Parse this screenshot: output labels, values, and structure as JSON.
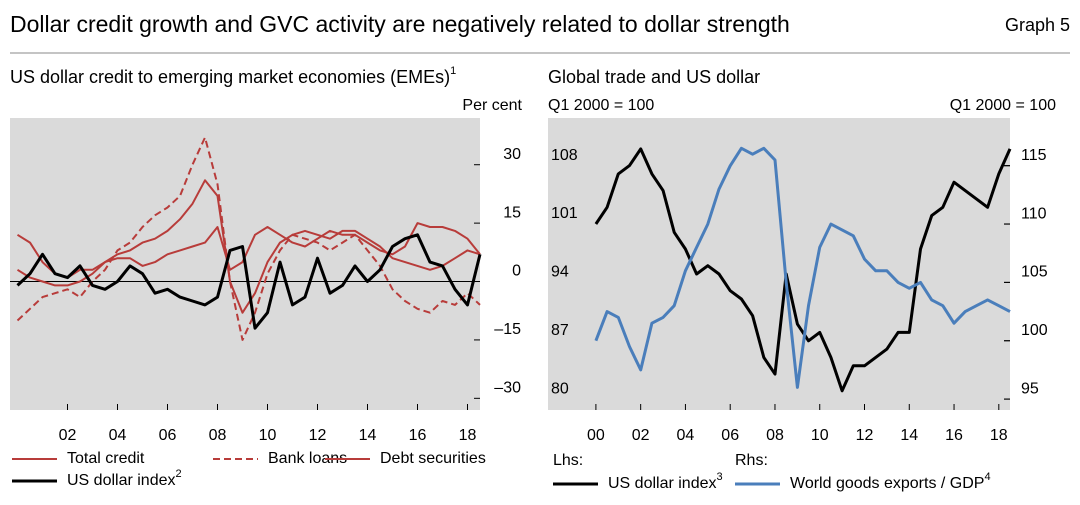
{
  "title": "Dollar credit growth and GVC activity are negatively related to dollar strength",
  "graph_label": "Graph 5",
  "chart_data": [
    {
      "type": "line",
      "title": "US dollar credit to emerging market economies (EMEs)",
      "title_note": "1",
      "y_unit": "Per cent",
      "x": [
        2000,
        2000.5,
        2001,
        2001.5,
        2002,
        2002.5,
        2003,
        2003.5,
        2004,
        2004.5,
        2005,
        2005.5,
        2006,
        2006.5,
        2007,
        2007.5,
        2008,
        2008.5,
        2009,
        2009.5,
        2010,
        2010.5,
        2011,
        2011.5,
        2012,
        2012.5,
        2013,
        2013.5,
        2014,
        2014.5,
        2015,
        2015.5,
        2016,
        2016.5,
        2017,
        2017.5,
        2018,
        2018.5
      ],
      "xlim": [
        1999.7,
        2018.5
      ],
      "xticks": [
        {
          "value": 2002,
          "label": "02"
        },
        {
          "value": 2004,
          "label": "04"
        },
        {
          "value": 2006,
          "label": "06"
        },
        {
          "value": 2008,
          "label": "08"
        },
        {
          "value": 2010,
          "label": "10"
        },
        {
          "value": 2012,
          "label": "12"
        },
        {
          "value": 2014,
          "label": "14"
        },
        {
          "value": 2016,
          "label": "16"
        },
        {
          "value": 2018,
          "label": "18"
        }
      ],
      "ylim": [
        -33,
        42
      ],
      "yticks": [
        30,
        15,
        0,
        {
          "value": -15,
          "label": "–15"
        },
        {
          "value": -30,
          "label": "–30"
        }
      ],
      "zero_line": true,
      "grid": false,
      "series": [
        {
          "name": "Total credit",
          "color": "#b83c3a",
          "dash": false,
          "width": 2,
          "values": [
            3,
            1,
            0,
            -1,
            -1,
            0,
            2,
            5,
            7,
            8,
            10,
            11,
            13,
            16,
            20,
            26,
            22,
            0,
            -8,
            -3,
            5,
            10,
            12,
            13,
            12,
            11,
            13,
            13,
            11,
            9,
            6,
            5,
            4,
            3,
            4,
            6,
            8,
            7
          ]
        },
        {
          "name": "Bank loans",
          "color": "#b83c3a",
          "dash": true,
          "width": 2,
          "values": [
            -10,
            -7,
            -4,
            -3,
            -2,
            -4,
            0,
            3,
            8,
            10,
            14,
            17,
            19,
            22,
            30,
            37,
            25,
            0,
            -15,
            -8,
            2,
            8,
            12,
            11,
            10,
            8,
            10,
            12,
            8,
            4,
            -2,
            -5,
            -7,
            -8,
            -5,
            -6,
            -3,
            -6
          ]
        },
        {
          "name": "Debt securities",
          "color": "#b83c3a",
          "dash": false,
          "width": 2,
          "values": [
            12,
            10,
            5,
            2,
            1,
            3,
            3,
            5,
            6,
            6,
            4,
            5,
            7,
            8,
            9,
            10,
            14,
            3,
            5,
            12,
            14,
            12,
            10,
            9,
            11,
            13,
            12,
            12,
            10,
            8,
            7,
            9,
            15,
            14,
            14,
            13,
            11,
            7
          ]
        },
        {
          "name": "US dollar index",
          "note": "2",
          "color": "#000000",
          "dash": false,
          "width": 3,
          "values": [
            -1,
            2,
            7,
            2,
            1,
            4,
            -1,
            -2,
            0,
            4,
            2,
            -3,
            -2,
            -4,
            -5,
            -6,
            -4,
            8,
            9,
            -12,
            -8,
            5,
            -6,
            -4,
            6,
            -3,
            -1,
            4,
            0,
            3,
            9,
            11,
            12,
            5,
            4,
            -2,
            -6,
            7
          ]
        }
      ]
    },
    {
      "type": "line",
      "title": "Global trade and US dollar",
      "y_unit": "Q1 2000 = 100",
      "y2_unit": "Q1 2000 = 100",
      "x": [
        2000,
        2000.5,
        2001,
        2001.5,
        2002,
        2002.5,
        2003,
        2003.5,
        2004,
        2004.5,
        2005,
        2005.5,
        2006,
        2006.5,
        2007,
        2007.5,
        2008,
        2008.5,
        2009,
        2009.5,
        2010,
        2010.5,
        2011,
        2011.5,
        2012,
        2012.5,
        2013,
        2013.5,
        2014,
        2014.5,
        2015,
        2015.5,
        2016,
        2016.5,
        2017,
        2017.5,
        2018,
        2018.5
      ],
      "xlim": [
        1997.86,
        2018.5
      ],
      "xticks": [
        {
          "value": 2000,
          "label": "00"
        },
        {
          "value": 2002,
          "label": "02"
        },
        {
          "value": 2004,
          "label": "04"
        },
        {
          "value": 2006,
          "label": "06"
        },
        {
          "value": 2008,
          "label": "08"
        },
        {
          "value": 2010,
          "label": "10"
        },
        {
          "value": 2012,
          "label": "12"
        },
        {
          "value": 2014,
          "label": "14"
        },
        {
          "value": 2016,
          "label": "16"
        },
        {
          "value": 2018,
          "label": "18"
        }
      ],
      "ylim": [
        78.7,
        113.7
      ],
      "yticks": [
        80,
        87,
        94,
        101,
        108
      ],
      "y2lim": [
        94.06,
        119.1
      ],
      "y2ticks": [
        95,
        100,
        105,
        110,
        115
      ],
      "grid": false,
      "series": [
        {
          "name": "US dollar index",
          "note": "3",
          "group": "Lhs:",
          "color": "#000000",
          "dash": false,
          "width": 3,
          "axis": "y",
          "values": [
            101,
            103,
            107,
            108,
            110,
            107,
            105,
            100,
            98,
            95,
            96,
            95,
            93,
            92,
            90,
            85,
            83,
            95,
            89,
            87,
            88,
            85,
            81,
            84,
            84,
            85,
            86,
            88,
            88,
            98,
            102,
            103,
            106,
            105,
            104,
            103,
            107,
            110
          ]
        },
        {
          "name": "World goods exports / GDP",
          "note": "4",
          "group": "Rhs:",
          "color": "#4a7ebb",
          "dash": false,
          "width": 3,
          "axis": "y2",
          "values": [
            100,
            102.5,
            102,
            99.5,
            97.5,
            101.5,
            102,
            103,
            106,
            108,
            110,
            113,
            115,
            116.5,
            116,
            116.5,
            115.5,
            105,
            96,
            103,
            108,
            110,
            109.5,
            109,
            107,
            106,
            106,
            105,
            104.5,
            105,
            103.5,
            103,
            101.5,
            102.5,
            103,
            103.5,
            103,
            102.5
          ]
        }
      ]
    }
  ]
}
